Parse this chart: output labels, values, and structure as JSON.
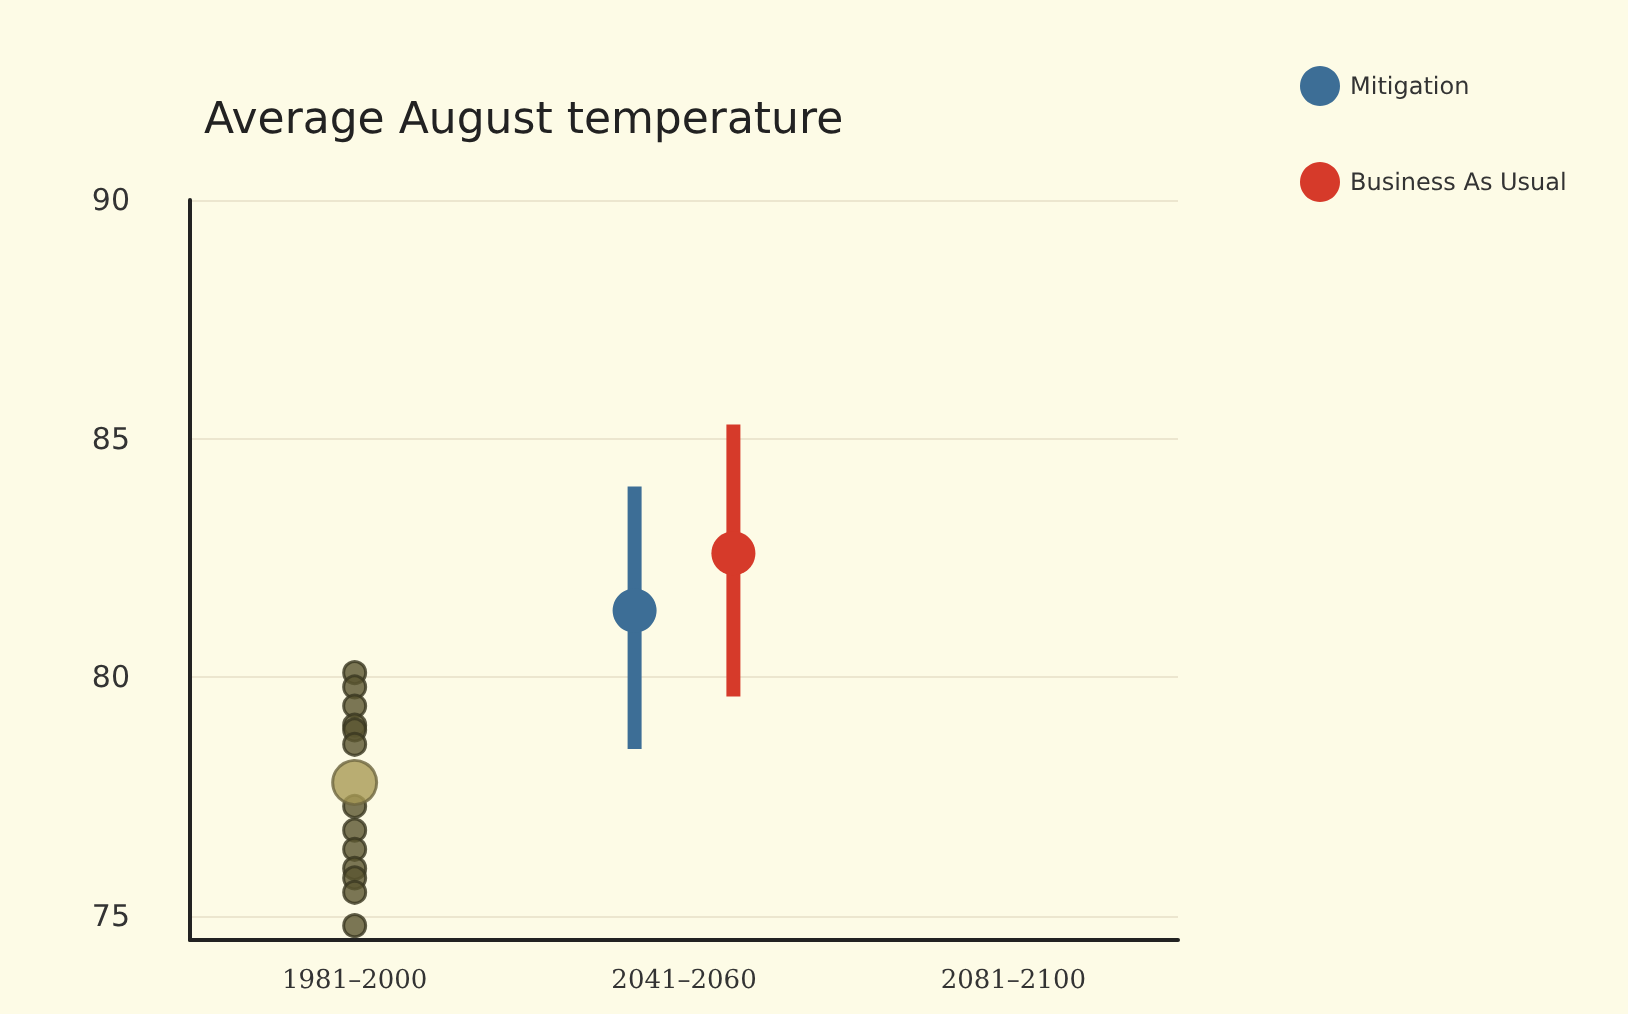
{
  "chart_data": {
    "type": "scatter",
    "title": "Average August temperature",
    "categories": [
      "1981–2000",
      "2041–2060",
      "2081–2100"
    ],
    "ylim": [
      74.5,
      90
    ],
    "yticks": [
      75,
      80,
      85,
      90
    ],
    "grid": "y",
    "legend": "top right",
    "marker": "circle",
    "series": [
      {
        "color": "#5a5530",
        "x": [
          "1981–2000",
          "1981–2000",
          "1981–2000",
          "1981–2000",
          "1981–2000",
          "1981–2000",
          "1981–2000",
          "1981–2000",
          "1981–2000",
          "1981–2000",
          "1981–2000",
          "1981–2000",
          "1981–2000"
        ],
        "values": [
          80.1,
          79.8,
          79.4,
          79.0,
          78.9,
          78.6,
          77.3,
          76.8,
          76.4,
          76.0,
          75.8,
          75.5,
          74.8
        ]
      },
      {
        "color": "#a89a55",
        "x": [
          "1981–2000"
        ],
        "values": [
          77.8
        ]
      },
      {
        "name": "Mitigation",
        "color": "#3d6e96",
        "x": [
          "2041–2060"
        ],
        "values": [
          81.4
        ],
        "errors": [
          [
            78.5,
            84.0
          ]
        ]
      },
      {
        "name": "Business As Usual",
        "color": "#d63a2a",
        "x": [
          "2041–2060"
        ],
        "values": [
          82.6
        ],
        "errors": [
          [
            79.6,
            85.3
          ]
        ]
      }
    ]
  }
}
